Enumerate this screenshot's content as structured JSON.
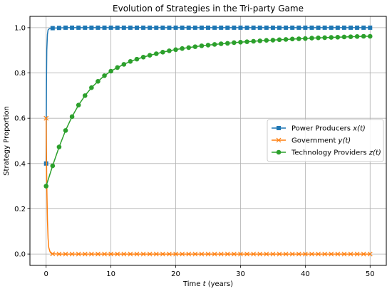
{
  "chart_data": {
    "type": "line",
    "title": "Evolution of Strategies in the Tri-party Game",
    "xlabel_prefix": "Time ",
    "xlabel_var": "t",
    "xlabel_suffix": " (years)",
    "ylabel": "Strategy Proportion",
    "xlim": [
      -2.5,
      52.5
    ],
    "ylim": [
      -0.05,
      1.05
    ],
    "xticks": [
      0,
      10,
      20,
      30,
      40,
      50
    ],
    "yticks": [
      0.0,
      0.2,
      0.4,
      0.6,
      0.8,
      1.0
    ],
    "xtick_labels": [
      "0",
      "10",
      "20",
      "30",
      "40",
      "50"
    ],
    "ytick_labels": [
      "0.0",
      "0.2",
      "0.4",
      "0.6",
      "0.8",
      "1.0"
    ],
    "grid": true,
    "legend_position": "center-right",
    "series": [
      {
        "name_main": "Power Producers ",
        "name_var": "x(t)",
        "color": "#1f77b4",
        "marker": "square",
        "x": [
          0,
          0.05,
          0.1,
          0.2,
          0.3,
          0.5,
          1,
          2,
          3,
          4,
          5,
          6,
          7,
          8,
          9,
          10,
          11,
          12,
          13,
          14,
          15,
          16,
          17,
          18,
          19,
          20,
          21,
          22,
          23,
          24,
          25,
          26,
          27,
          28,
          29,
          30,
          31,
          32,
          33,
          34,
          35,
          36,
          37,
          38,
          39,
          40,
          41,
          42,
          43,
          44,
          45,
          46,
          47,
          48,
          49,
          50
        ],
        "y": [
          0.4,
          0.75,
          0.9,
          0.97,
          0.99,
          0.996,
          0.998,
          0.999,
          1.0,
          1.0,
          1.0,
          1.0,
          1.0,
          1.0,
          1.0,
          1.0,
          1.0,
          1.0,
          1.0,
          1.0,
          1.0,
          1.0,
          1.0,
          1.0,
          1.0,
          1.0,
          1.0,
          1.0,
          1.0,
          1.0,
          1.0,
          1.0,
          1.0,
          1.0,
          1.0,
          1.0,
          1.0,
          1.0,
          1.0,
          1.0,
          1.0,
          1.0,
          1.0,
          1.0,
          1.0,
          1.0,
          1.0,
          1.0,
          1.0,
          1.0,
          1.0,
          1.0,
          1.0,
          1.0,
          1.0,
          1.0
        ],
        "marker_x": [
          0,
          1,
          2,
          3,
          4,
          5,
          6,
          7,
          8,
          9,
          10,
          11,
          12,
          13,
          14,
          15,
          16,
          17,
          18,
          19,
          20,
          21,
          22,
          23,
          24,
          25,
          26,
          27,
          28,
          29,
          30,
          31,
          32,
          33,
          34,
          35,
          36,
          37,
          38,
          39,
          40,
          41,
          42,
          43,
          44,
          45,
          46,
          47,
          48,
          49,
          50
        ],
        "marker_y": [
          0.4,
          0.998,
          0.999,
          1.0,
          1.0,
          1.0,
          1.0,
          1.0,
          1.0,
          1.0,
          1.0,
          1.0,
          1.0,
          1.0,
          1.0,
          1.0,
          1.0,
          1.0,
          1.0,
          1.0,
          1.0,
          1.0,
          1.0,
          1.0,
          1.0,
          1.0,
          1.0,
          1.0,
          1.0,
          1.0,
          1.0,
          1.0,
          1.0,
          1.0,
          1.0,
          1.0,
          1.0,
          1.0,
          1.0,
          1.0,
          1.0,
          1.0,
          1.0,
          1.0,
          1.0,
          1.0,
          1.0,
          1.0,
          1.0,
          1.0,
          1.0
        ]
      },
      {
        "name_main": "Government ",
        "name_var": "y(t)",
        "color": "#ff7f0e",
        "marker": "x",
        "x": [
          0,
          0.05,
          0.1,
          0.2,
          0.3,
          0.4,
          0.6,
          0.8,
          1,
          2,
          50
        ],
        "y": [
          0.6,
          0.45,
          0.3,
          0.15,
          0.07,
          0.03,
          0.01,
          0.003,
          0.001,
          0.0,
          0.0
        ],
        "marker_x": [
          0,
          1,
          2,
          3,
          4,
          5,
          6,
          7,
          8,
          9,
          10,
          11,
          12,
          13,
          14,
          15,
          16,
          17,
          18,
          19,
          20,
          21,
          22,
          23,
          24,
          25,
          26,
          27,
          28,
          29,
          30,
          31,
          32,
          33,
          34,
          35,
          36,
          37,
          38,
          39,
          40,
          41,
          42,
          43,
          44,
          45,
          46,
          47,
          48,
          49,
          50
        ],
        "marker_y": [
          0.6,
          0.001,
          0.0,
          0.0,
          0.0,
          0.0,
          0.0,
          0.0,
          0.0,
          0.0,
          0.0,
          0.0,
          0.0,
          0.0,
          0.0,
          0.0,
          0.0,
          0.0,
          0.0,
          0.0,
          0.0,
          0.0,
          0.0,
          0.0,
          0.0,
          0.0,
          0.0,
          0.0,
          0.0,
          0.0,
          0.0,
          0.0,
          0.0,
          0.0,
          0.0,
          0.0,
          0.0,
          0.0,
          0.0,
          0.0,
          0.0,
          0.0,
          0.0,
          0.0,
          0.0,
          0.0,
          0.0,
          0.0,
          0.0,
          0.0,
          0.0
        ]
      },
      {
        "name_main": "Technology Providers ",
        "name_var": "z(t)",
        "color": "#2ca02c",
        "marker": "circle",
        "x": [
          0,
          1,
          2,
          3,
          4,
          5,
          6,
          7,
          8,
          9,
          10,
          11,
          12,
          13,
          14,
          15,
          16,
          17,
          18,
          19,
          20,
          21,
          22,
          23,
          24,
          25,
          26,
          27,
          28,
          29,
          30,
          31,
          32,
          33,
          34,
          35,
          36,
          37,
          38,
          39,
          40,
          41,
          42,
          43,
          44,
          45,
          46,
          47,
          48,
          49,
          50
        ],
        "y": [
          0.3,
          0.39,
          0.473,
          0.546,
          0.607,
          0.658,
          0.7,
          0.735,
          0.763,
          0.788,
          0.808,
          0.824,
          0.838,
          0.851,
          0.861,
          0.87,
          0.878,
          0.885,
          0.892,
          0.898,
          0.903,
          0.908,
          0.912,
          0.916,
          0.92,
          0.923,
          0.926,
          0.929,
          0.931,
          0.934,
          0.936,
          0.938,
          0.94,
          0.942,
          0.944,
          0.945,
          0.947,
          0.948,
          0.95,
          0.951,
          0.952,
          0.954,
          0.955,
          0.956,
          0.957,
          0.958,
          0.959,
          0.96,
          0.961,
          0.962,
          0.962
        ],
        "marker_x": [
          0,
          1,
          2,
          3,
          4,
          5,
          6,
          7,
          8,
          9,
          10,
          11,
          12,
          13,
          14,
          15,
          16,
          17,
          18,
          19,
          20,
          21,
          22,
          23,
          24,
          25,
          26,
          27,
          28,
          29,
          30,
          31,
          32,
          33,
          34,
          35,
          36,
          37,
          38,
          39,
          40,
          41,
          42,
          43,
          44,
          45,
          46,
          47,
          48,
          49,
          50
        ],
        "marker_y": [
          0.3,
          0.39,
          0.473,
          0.546,
          0.607,
          0.658,
          0.7,
          0.735,
          0.763,
          0.788,
          0.808,
          0.824,
          0.838,
          0.851,
          0.861,
          0.87,
          0.878,
          0.885,
          0.892,
          0.898,
          0.903,
          0.908,
          0.912,
          0.916,
          0.92,
          0.923,
          0.926,
          0.929,
          0.931,
          0.934,
          0.936,
          0.938,
          0.94,
          0.942,
          0.944,
          0.945,
          0.947,
          0.948,
          0.95,
          0.951,
          0.952,
          0.954,
          0.955,
          0.956,
          0.957,
          0.958,
          0.959,
          0.96,
          0.961,
          0.962,
          0.962
        ]
      }
    ]
  }
}
